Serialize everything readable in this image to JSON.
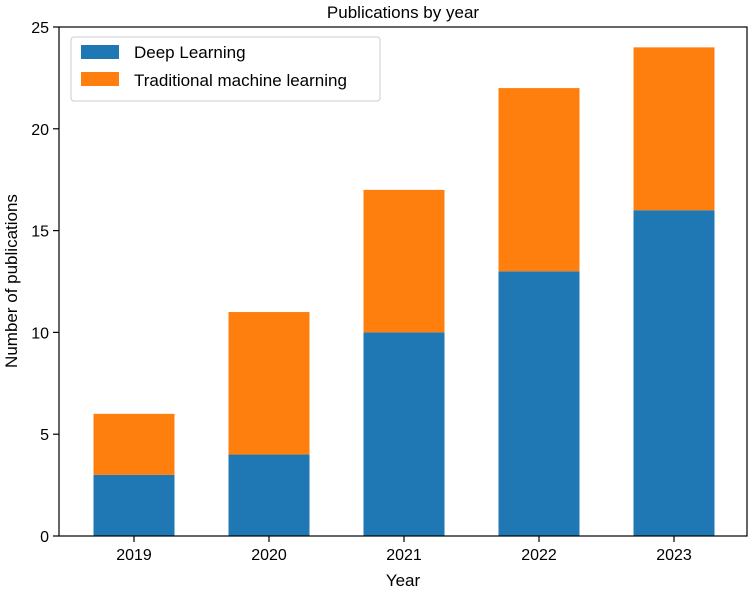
{
  "colors": {
    "deep_learning": "#1f77b4",
    "traditional_ml": "#ff7f0e",
    "axis": "#000000",
    "legend_border": "#cccccc"
  },
  "chart_data": {
    "type": "bar",
    "stacked": true,
    "title": "Publications by year",
    "xlabel": "Year",
    "ylabel": "Number of publications",
    "categories": [
      "2019",
      "2020",
      "2021",
      "2022",
      "2023"
    ],
    "series": [
      {
        "name": "Deep Learning",
        "values": [
          3,
          4,
          10,
          13,
          16
        ]
      },
      {
        "name": "Traditional machine learning",
        "values": [
          3,
          7,
          7,
          9,
          8
        ]
      }
    ],
    "ylim": [
      0,
      25
    ],
    "yticks": [
      0,
      5,
      10,
      15,
      20,
      25
    ],
    "grid": false,
    "legend_position": "top-left"
  }
}
